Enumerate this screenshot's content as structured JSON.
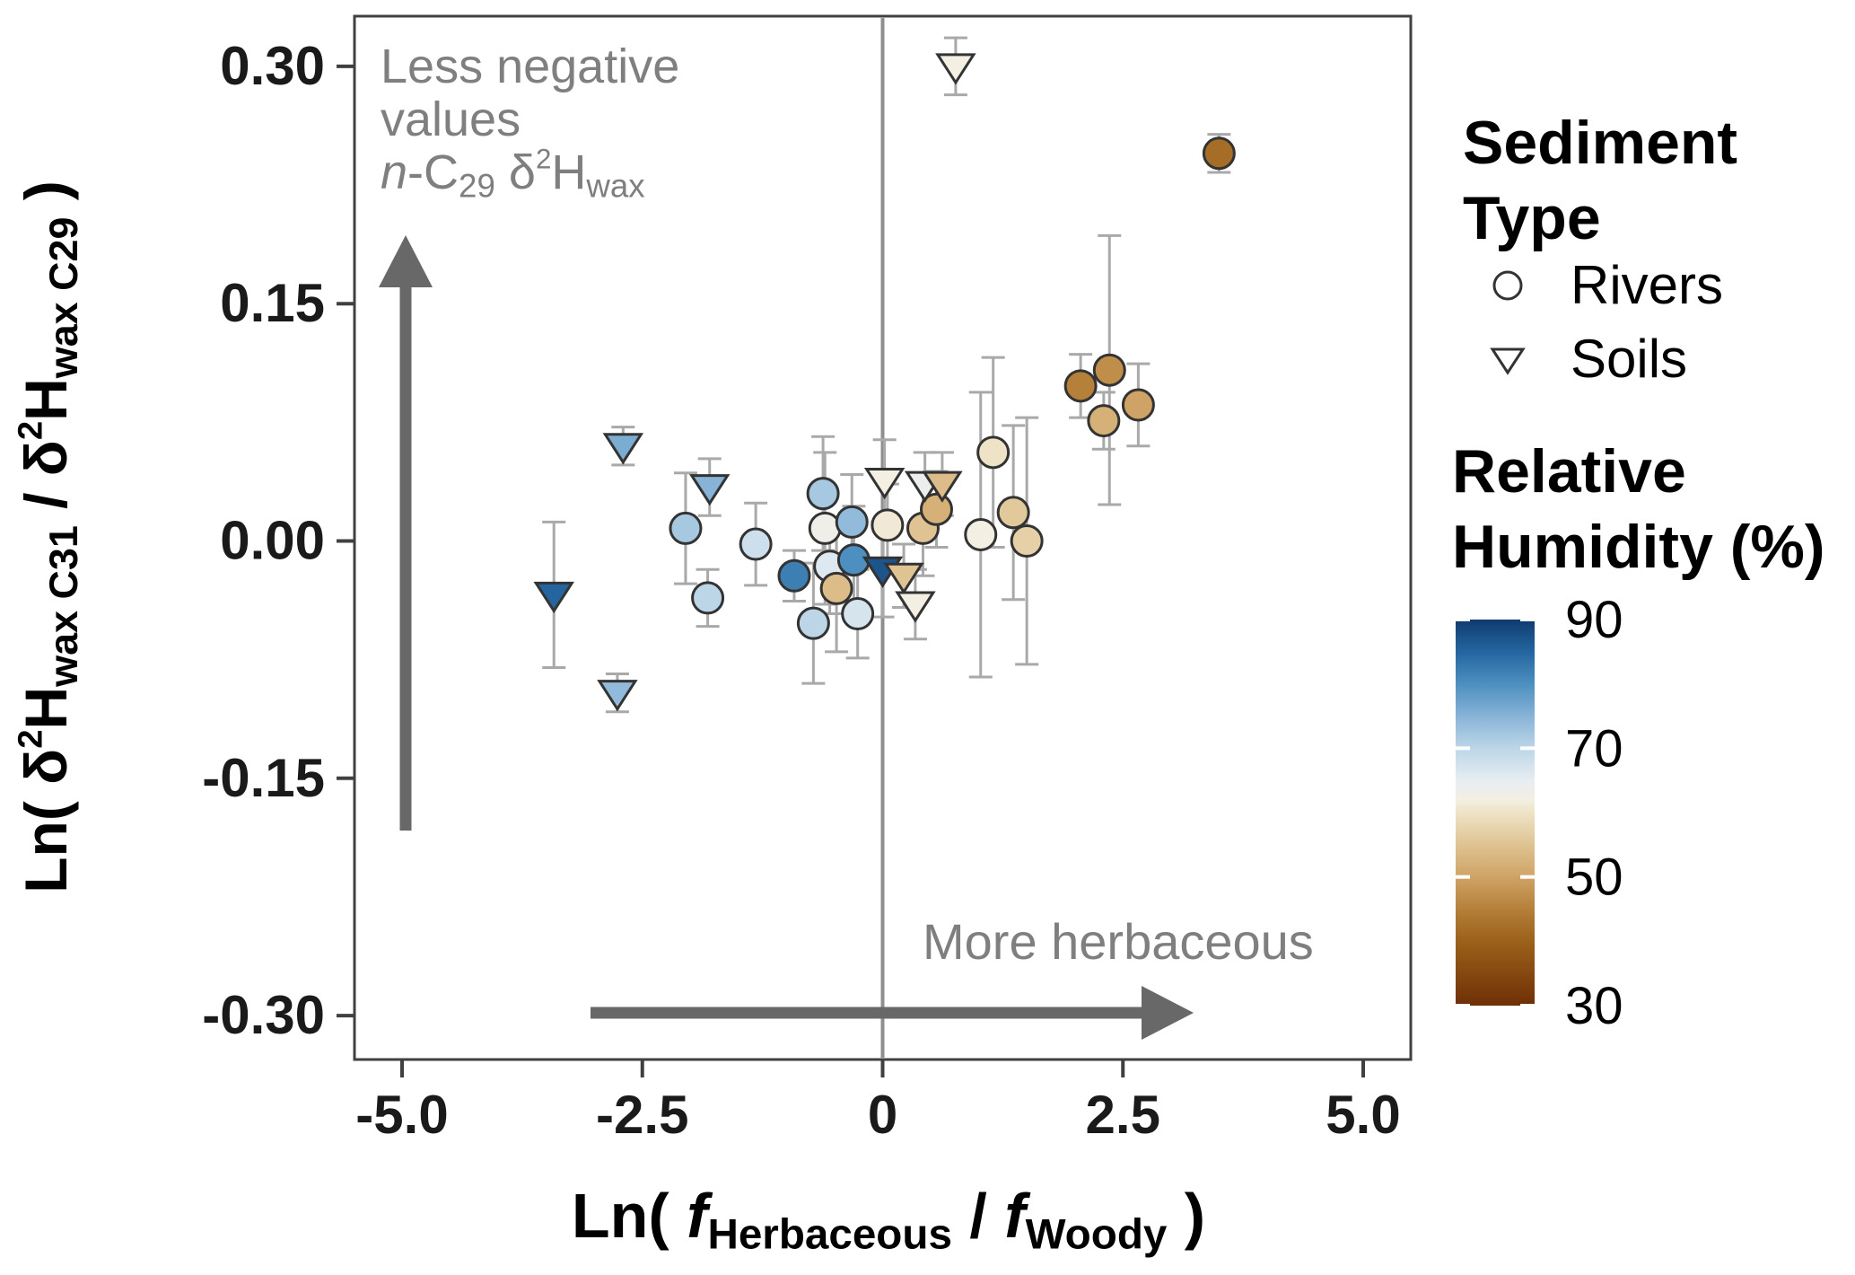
{
  "chart_data": {
    "type": "scatter",
    "title": "",
    "xlabel_segments": [
      {
        "t": "Ln( "
      },
      {
        "t": "f",
        "i": true
      },
      {
        "t": "Herbaceous",
        "sub": true
      },
      {
        "t": " / "
      },
      {
        "t": "f",
        "i": true
      },
      {
        "t": "Woody",
        "sub": true
      },
      {
        "t": " )"
      }
    ],
    "ylabel_segments": [
      {
        "t": "Ln( "
      },
      {
        "t": "δ"
      },
      {
        "t": "2",
        "sup": true
      },
      {
        "t": "H"
      },
      {
        "t": "wax C31",
        "sub": true
      },
      {
        "t": " / "
      },
      {
        "t": "δ"
      },
      {
        "t": "2",
        "sup": true
      },
      {
        "t": "H"
      },
      {
        "t": "wax C29",
        "sub": true
      },
      {
        "t": " )"
      }
    ],
    "xlim": [
      -5.5,
      5.5
    ],
    "ylim": [
      -0.33,
      0.33
    ],
    "x_ticks": [
      {
        "v": -5.0,
        "label": "-5.0"
      },
      {
        "v": -2.5,
        "label": "-2.5"
      },
      {
        "v": 0,
        "label": "0"
      },
      {
        "v": 2.5,
        "label": "2.5"
      },
      {
        "v": 5.0,
        "label": "5.0"
      }
    ],
    "y_ticks": [
      {
        "v": 0.3,
        "label": "0.30"
      },
      {
        "v": 0.15,
        "label": "0.15"
      },
      {
        "v": 0.0,
        "label": "0.00"
      },
      {
        "v": -0.15,
        "label": "-0.15"
      },
      {
        "v": -0.3,
        "label": "-0.30"
      }
    ],
    "zero_line_x": 0,
    "series": [
      {
        "name": "Rivers",
        "marker": "circle",
        "points": [
          {
            "x": -2.05,
            "y": 0.008,
            "err": 0.035,
            "rh": 72
          },
          {
            "x": -1.82,
            "y": -0.036,
            "err": 0.018,
            "rh": 70
          },
          {
            "x": -1.32,
            "y": -0.002,
            "err": 0.026,
            "rh": 68
          },
          {
            "x": -0.92,
            "y": -0.022,
            "err": 0.016,
            "rh": 82
          },
          {
            "x": -0.72,
            "y": -0.052,
            "err": 0.038,
            "rh": 70
          },
          {
            "x": -0.62,
            "y": 0.03,
            "err": 0.036,
            "rh": 72
          },
          {
            "x": -0.6,
            "y": 0.008,
            "err": 0.048,
            "rh": 63
          },
          {
            "x": -0.55,
            "y": -0.016,
            "err": 0.03,
            "rh": 66
          },
          {
            "x": -0.48,
            "y": -0.03,
            "err": 0.04,
            "rh": 54
          },
          {
            "x": -0.32,
            "y": 0.012,
            "err": 0.03,
            "rh": 74
          },
          {
            "x": -0.3,
            "y": -0.012,
            "err": 0.034,
            "rh": 80
          },
          {
            "x": -0.26,
            "y": -0.046,
            "err": 0.028,
            "rh": 67
          },
          {
            "x": 0.05,
            "y": 0.01,
            "err": 0.026,
            "rh": 61
          },
          {
            "x": 0.42,
            "y": 0.008,
            "err": 0.03,
            "rh": 55
          },
          {
            "x": 0.56,
            "y": 0.02,
            "err": 0.024,
            "rh": 52
          },
          {
            "x": 1.02,
            "y": 0.004,
            "err": 0.09,
            "rh": 62
          },
          {
            "x": 1.15,
            "y": 0.056,
            "err": 0.06,
            "rh": 60
          },
          {
            "x": 1.36,
            "y": 0.018,
            "err": 0.055,
            "rh": 56
          },
          {
            "x": 1.5,
            "y": 0.0,
            "err": 0.078,
            "rh": 57
          },
          {
            "x": 2.06,
            "y": 0.098,
            "err": 0.02,
            "rh": 45
          },
          {
            "x": 2.36,
            "y": 0.108,
            "err": 0.085,
            "rh": 47
          },
          {
            "x": 2.3,
            "y": 0.076,
            "err": 0.018,
            "rh": 52
          },
          {
            "x": 2.66,
            "y": 0.086,
            "err": 0.026,
            "rh": 50
          },
          {
            "x": 3.5,
            "y": 0.245,
            "err": 0.012,
            "rh": 42
          }
        ]
      },
      {
        "name": "Soils",
        "marker": "triangle-down",
        "points": [
          {
            "x": -3.42,
            "y": -0.034,
            "err": 0.046,
            "rh": 85
          },
          {
            "x": -2.7,
            "y": 0.06,
            "err": 0.012,
            "rh": 76
          },
          {
            "x": -2.76,
            "y": -0.096,
            "err": 0.012,
            "rh": 74
          },
          {
            "x": -1.8,
            "y": 0.034,
            "err": 0.018,
            "rh": 75
          },
          {
            "x": 0.02,
            "y": 0.038,
            "err": 0.026,
            "rh": 62
          },
          {
            "x": 0.0,
            "y": -0.018,
            "err": 0.03,
            "rh": 87
          },
          {
            "x": 0.22,
            "y": -0.022,
            "err": 0.02,
            "rh": 55
          },
          {
            "x": 0.34,
            "y": -0.04,
            "err": 0.022,
            "rh": 62
          },
          {
            "x": 0.44,
            "y": 0.036,
            "err": 0.02,
            "rh": 64
          },
          {
            "x": 0.62,
            "y": 0.036,
            "err": 0.02,
            "rh": 54
          },
          {
            "x": 0.76,
            "y": 0.3,
            "err": 0.018,
            "rh": 62
          }
        ]
      }
    ],
    "annotations": {
      "less_negative_lines": [
        [
          {
            "t": "Less negative"
          }
        ],
        [
          {
            "t": "values"
          }
        ],
        [
          {
            "t": "n",
            "i": true
          },
          {
            "t": "-C"
          },
          {
            "t": "29",
            "sub": true
          },
          {
            "t": " δ"
          },
          {
            "t": "2",
            "sup": true
          },
          {
            "t": "H"
          },
          {
            "t": "wax",
            "sub": true
          }
        ]
      ],
      "more_herbaceous": "More herbaceous"
    }
  },
  "legend": {
    "sediment_type": {
      "title_lines": [
        "Sediment",
        "Type"
      ],
      "items": [
        {
          "marker": "circle",
          "label": "Rivers"
        },
        {
          "marker": "triangle-down",
          "label": "Soils"
        }
      ]
    },
    "humidity": {
      "title_lines": [
        "Relative",
        "Humidity (%)"
      ],
      "range": [
        30,
        90
      ],
      "ticks": [
        {
          "v": 90,
          "label": "90"
        },
        {
          "v": 70,
          "label": "70"
        },
        {
          "v": 50,
          "label": "50"
        },
        {
          "v": 30,
          "label": "30"
        }
      ],
      "gradient_stops": [
        {
          "v": 30,
          "c": "#6f2f06"
        },
        {
          "v": 40,
          "c": "#9c611a"
        },
        {
          "v": 45,
          "c": "#b5803a"
        },
        {
          "v": 50,
          "c": "#cfa365"
        },
        {
          "v": 55,
          "c": "#dfc392"
        },
        {
          "v": 60,
          "c": "#eee3c6"
        },
        {
          "v": 62,
          "c": "#f3efe3"
        },
        {
          "v": 65,
          "c": "#e7edf2"
        },
        {
          "v": 70,
          "c": "#bcd6e8"
        },
        {
          "v": 75,
          "c": "#87b3d7"
        },
        {
          "v": 80,
          "c": "#4d8fc0"
        },
        {
          "v": 85,
          "c": "#24659f"
        },
        {
          "v": 90,
          "c": "#0f3b70"
        }
      ]
    }
  },
  "colors": {
    "background": "#ffffff",
    "plot_border": "#404040",
    "zero_line": "#8f8f8f",
    "axis_text": "#1a1a1a",
    "annotation_text": "#7f7f7f",
    "arrow": "#686868",
    "error_bar": "#a9a9a9",
    "marker_stroke": "#333333"
  }
}
